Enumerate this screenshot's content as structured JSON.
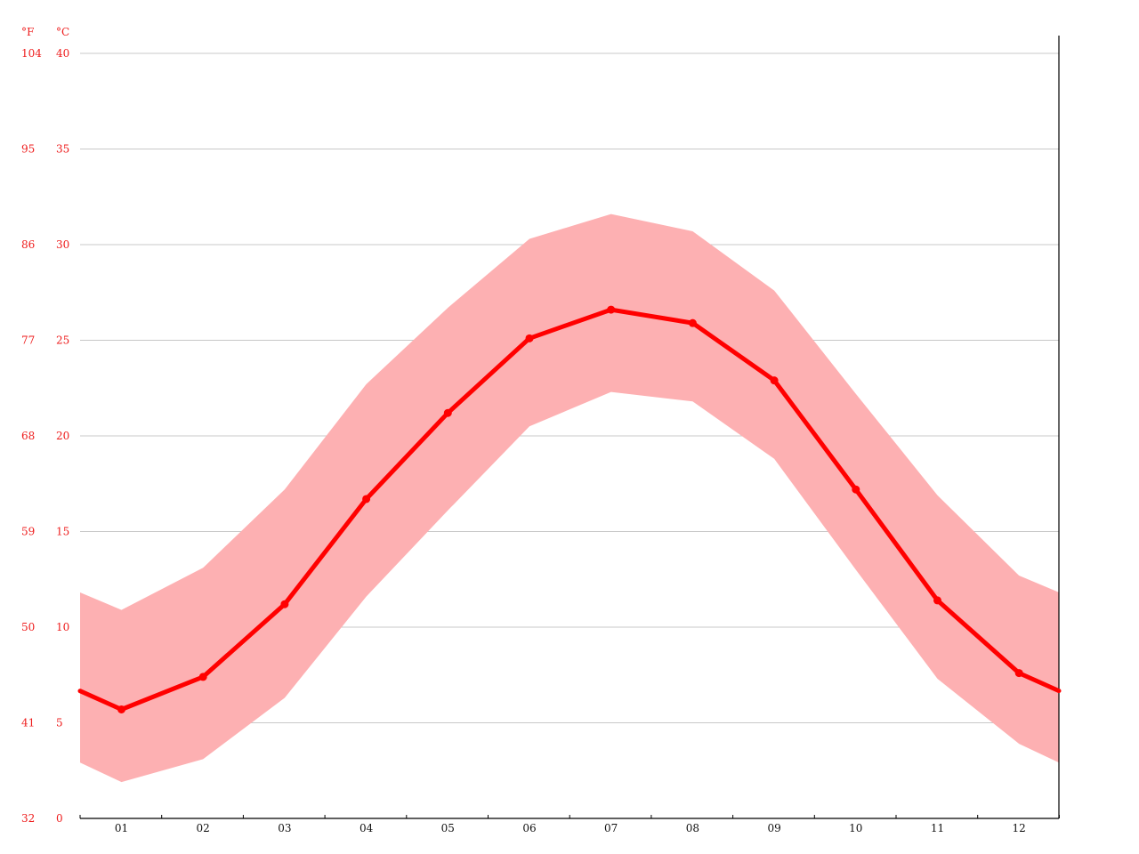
{
  "chart_data": {
    "type": "line",
    "title": "",
    "xlabel": "",
    "ylabel": "",
    "units": {
      "fahrenheit_label": "°F",
      "celsius_label": "°C"
    },
    "categories": [
      "01",
      "02",
      "03",
      "04",
      "05",
      "06",
      "07",
      "08",
      "09",
      "10",
      "11",
      "12"
    ],
    "ylim": [
      0,
      40
    ],
    "y_ticks_c": [
      "0",
      "5",
      "10",
      "15",
      "20",
      "25",
      "30",
      "35",
      "40"
    ],
    "y_ticks_f": [
      "32",
      "41",
      "50",
      "59",
      "68",
      "77",
      "86",
      "95",
      "104"
    ],
    "y_tick_values": [
      0,
      5,
      10,
      15,
      20,
      25,
      30,
      35,
      40
    ],
    "series": [
      {
        "values": [
          5.7,
          7.4,
          11.2,
          16.7,
          21.2,
          25.1,
          26.6,
          25.9,
          22.9,
          17.2,
          11.4,
          7.6
        ]
      }
    ],
    "band": {
      "low": [
        1.9,
        3.1,
        6.3,
        11.6,
        16.1,
        20.5,
        22.3,
        21.8,
        18.8,
        13.0,
        7.3,
        3.9
      ],
      "high": [
        10.9,
        13.1,
        17.2,
        22.7,
        26.7,
        30.3,
        31.6,
        30.7,
        27.6,
        22.2,
        16.9,
        12.7
      ]
    },
    "grid": true,
    "legend": "none",
    "colors": {
      "line": "#ff0000",
      "band": "#fdb0b2",
      "tick_text": "#ee1c1c",
      "grid": "#c8c8c8"
    }
  }
}
